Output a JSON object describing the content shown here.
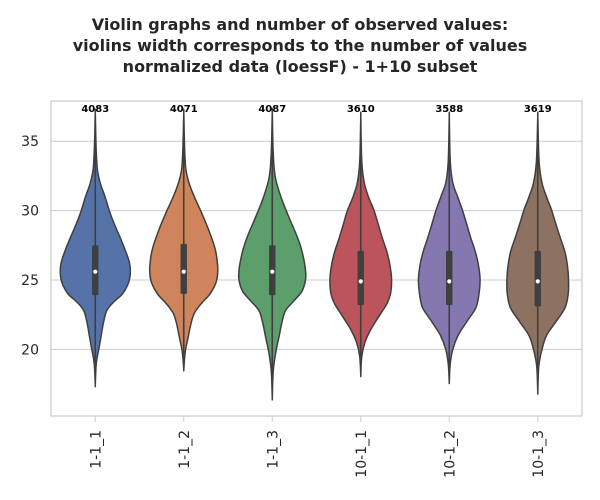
{
  "chart_data": {
    "type": "violin",
    "title": [
      "Violin graphs and number of observed values:",
      "violins width corresponds to the number of values",
      "normalized data (loessF) - 1+10 subset"
    ],
    "xlabel": "",
    "ylabel": "",
    "categories": [
      "1-1_1",
      "1-1_2",
      "1-1_3",
      "10-1_1",
      "10-1_2",
      "10-1_3"
    ],
    "counts": [
      "4083",
      "4071",
      "4087",
      "3610",
      "3588",
      "3619"
    ],
    "colors": [
      "#5573a8",
      "#d0845b",
      "#5c9e6c",
      "#bb555b",
      "#8578b0",
      "#8d7261"
    ],
    "ylim": [
      15.2,
      37.9
    ],
    "yticks": [
      20,
      25,
      30,
      35
    ],
    "grid": "horizontal",
    "violins": [
      {
        "min": 17.5,
        "q1": 23.9,
        "median": 25.6,
        "q3": 27.5,
        "max": 37.0,
        "profile": [
          [
            17.5,
            0.0
          ],
          [
            19.0,
            0.03
          ],
          [
            20.0,
            0.1
          ],
          [
            21.0,
            0.17
          ],
          [
            22.0,
            0.24
          ],
          [
            22.8,
            0.33
          ],
          [
            23.4,
            0.52
          ],
          [
            24.0,
            0.78
          ],
          [
            24.8,
            0.95
          ],
          [
            25.5,
            1.0
          ],
          [
            26.2,
            0.98
          ],
          [
            27.0,
            0.88
          ],
          [
            28.0,
            0.72
          ],
          [
            29.0,
            0.55
          ],
          [
            30.0,
            0.4
          ],
          [
            31.0,
            0.28
          ],
          [
            32.0,
            0.14
          ],
          [
            33.0,
            0.06
          ],
          [
            34.5,
            0.025
          ],
          [
            37.0,
            0.0
          ]
        ]
      },
      {
        "min": 18.6,
        "q1": 24.0,
        "median": 25.6,
        "q3": 27.6,
        "max": 37.0,
        "profile": [
          [
            18.6,
            0.0
          ],
          [
            19.8,
            0.04
          ],
          [
            20.8,
            0.12
          ],
          [
            21.8,
            0.2
          ],
          [
            22.6,
            0.3
          ],
          [
            23.3,
            0.5
          ],
          [
            24.0,
            0.75
          ],
          [
            24.8,
            0.92
          ],
          [
            25.5,
            0.97
          ],
          [
            26.3,
            0.96
          ],
          [
            27.2,
            0.9
          ],
          [
            28.0,
            0.8
          ],
          [
            29.0,
            0.65
          ],
          [
            30.0,
            0.48
          ],
          [
            31.0,
            0.3
          ],
          [
            32.0,
            0.15
          ],
          [
            33.0,
            0.06
          ],
          [
            34.5,
            0.025
          ],
          [
            37.0,
            0.0
          ]
        ]
      },
      {
        "min": 16.6,
        "q1": 23.9,
        "median": 25.6,
        "q3": 27.5,
        "max": 37.0,
        "profile": [
          [
            16.6,
            0.0
          ],
          [
            18.5,
            0.03
          ],
          [
            19.8,
            0.1
          ],
          [
            21.0,
            0.2
          ],
          [
            22.0,
            0.28
          ],
          [
            22.8,
            0.38
          ],
          [
            23.5,
            0.62
          ],
          [
            24.2,
            0.85
          ],
          [
            25.0,
            0.95
          ],
          [
            25.7,
            0.95
          ],
          [
            26.5,
            0.9
          ],
          [
            27.5,
            0.8
          ],
          [
            28.5,
            0.65
          ],
          [
            29.5,
            0.48
          ],
          [
            30.5,
            0.32
          ],
          [
            31.5,
            0.18
          ],
          [
            32.5,
            0.08
          ],
          [
            34.0,
            0.03
          ],
          [
            37.0,
            0.0
          ]
        ]
      },
      {
        "min": 18.2,
        "q1": 23.2,
        "median": 24.9,
        "q3": 27.1,
        "max": 36.7,
        "profile": [
          [
            18.2,
            0.0
          ],
          [
            19.5,
            0.03
          ],
          [
            20.5,
            0.12
          ],
          [
            21.5,
            0.3
          ],
          [
            22.5,
            0.55
          ],
          [
            23.3,
            0.75
          ],
          [
            24.0,
            0.85
          ],
          [
            25.0,
            0.88
          ],
          [
            26.0,
            0.84
          ],
          [
            27.0,
            0.75
          ],
          [
            28.0,
            0.62
          ],
          [
            29.0,
            0.5
          ],
          [
            30.0,
            0.38
          ],
          [
            31.0,
            0.22
          ],
          [
            32.0,
            0.1
          ],
          [
            33.5,
            0.03
          ],
          [
            36.7,
            0.0
          ]
        ]
      },
      {
        "min": 17.7,
        "q1": 23.2,
        "median": 24.9,
        "q3": 27.1,
        "max": 36.7,
        "profile": [
          [
            17.7,
            0.0
          ],
          [
            19.0,
            0.03
          ],
          [
            20.0,
            0.1
          ],
          [
            21.0,
            0.25
          ],
          [
            22.0,
            0.5
          ],
          [
            23.0,
            0.76
          ],
          [
            24.0,
            0.85
          ],
          [
            25.0,
            0.88
          ],
          [
            26.0,
            0.84
          ],
          [
            27.0,
            0.75
          ],
          [
            28.0,
            0.62
          ],
          [
            29.0,
            0.5
          ],
          [
            30.0,
            0.38
          ],
          [
            31.0,
            0.24
          ],
          [
            32.0,
            0.1
          ],
          [
            33.5,
            0.03
          ],
          [
            36.7,
            0.0
          ]
        ]
      },
      {
        "min": 17.0,
        "q1": 23.1,
        "median": 24.9,
        "q3": 27.1,
        "max": 36.7,
        "profile": [
          [
            17.0,
            0.0
          ],
          [
            18.8,
            0.03
          ],
          [
            20.0,
            0.12
          ],
          [
            21.0,
            0.25
          ],
          [
            22.0,
            0.52
          ],
          [
            23.0,
            0.78
          ],
          [
            24.0,
            0.87
          ],
          [
            25.0,
            0.88
          ],
          [
            26.0,
            0.85
          ],
          [
            27.0,
            0.78
          ],
          [
            28.0,
            0.65
          ],
          [
            29.0,
            0.52
          ],
          [
            30.0,
            0.4
          ],
          [
            31.0,
            0.25
          ],
          [
            32.0,
            0.12
          ],
          [
            33.5,
            0.04
          ],
          [
            36.7,
            0.0
          ]
        ]
      }
    ]
  }
}
